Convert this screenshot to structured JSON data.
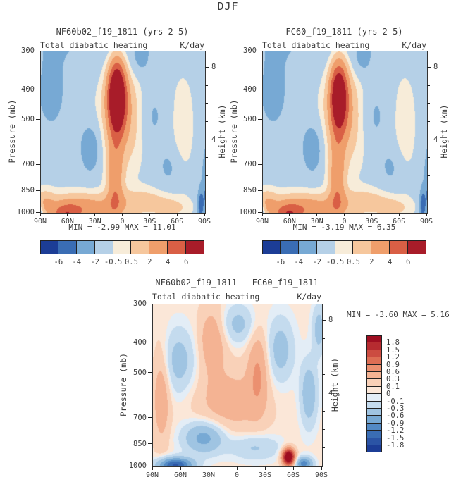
{
  "title": "DJF",
  "chart_data": [
    {
      "type": "contour",
      "panel": "top-left",
      "title": "NF60b02_f19_1811 (yrs 2-5)",
      "field_label": "Total diabatic heating",
      "units_label": "K/day",
      "stats": "MIN =  -2.99   MAX =  11.01",
      "min": -2.99,
      "max": 11.01,
      "xlabel_ticks": [
        "90N",
        "60N",
        "30N",
        "0",
        "30S",
        "60S",
        "90S"
      ],
      "ylabel": "Pressure (mb)",
      "y_ticks": [
        300,
        400,
        500,
        700,
        850,
        1000
      ],
      "y2label": "Height (km)",
      "y2_ticks": [
        8,
        4
      ],
      "levels": [
        -6,
        -4,
        -2,
        -0.5,
        0.5,
        2,
        4,
        6
      ],
      "colorbar_labels": [
        "-6",
        "-4",
        "-2",
        "-0.5",
        "0.5",
        "2",
        "4",
        "6"
      ],
      "palette": [
        "#1c3d96",
        "#3a6db4",
        "#77a9d4",
        "#b5d0e7",
        "#f7ecd9",
        "#f6c79d",
        "#ef9e6b",
        "#d95f45",
        "#a81c29"
      ],
      "base": -0.9,
      "field_blobs": [
        [
          -1.3,
          0.4,
          -0.12,
          0.55,
          0.22
        ],
        [
          -1.4,
          0.06,
          0.28,
          0.13,
          0.3
        ],
        [
          -1.2,
          0.6,
          0.06,
          0.06,
          0.1
        ],
        [
          10.8,
          0.46,
          0.27,
          0.055,
          0.22
        ],
        [
          3.0,
          0.5,
          0.4,
          0.13,
          0.3
        ],
        [
          4.0,
          0.45,
          0.8,
          0.05,
          0.25
        ],
        [
          4.3,
          0.24,
          0.97,
          0.22,
          0.09
        ],
        [
          4.0,
          0.15,
          1.02,
          0.08,
          0.07
        ],
        [
          2.2,
          0.62,
          0.93,
          0.18,
          0.08
        ],
        [
          1.5,
          0.8,
          0.97,
          0.1,
          0.06
        ],
        [
          2.0,
          0.02,
          0.93,
          0.06,
          0.08
        ],
        [
          -2.4,
          0.3,
          0.6,
          0.065,
          0.16
        ],
        [
          -1.6,
          0.67,
          0.4,
          0.09,
          0.22
        ],
        [
          -1.3,
          0.78,
          0.72,
          0.08,
          0.14
        ],
        [
          1.3,
          0.86,
          0.45,
          0.06,
          0.3
        ],
        [
          -6.0,
          1.03,
          0.85,
          0.04,
          0.25
        ],
        [
          -4.0,
          0.97,
          0.95,
          0.018,
          0.1
        ],
        [
          -2.5,
          -0.01,
          1.0,
          0.025,
          0.06
        ]
      ]
    },
    {
      "type": "contour",
      "panel": "top-right",
      "title": "FC60_f19_1811 (yrs 2-5)",
      "field_label": "Total diabatic heating",
      "units_label": "K/day",
      "stats": "MIN =  -3.19   MAX =   6.35",
      "min": -3.19,
      "max": 6.35,
      "xlabel_ticks": [
        "90N",
        "60N",
        "30N",
        "0",
        "30S",
        "60S",
        "90S"
      ],
      "ylabel": "Pressure (mb)",
      "y_ticks": [
        300,
        400,
        500,
        700,
        850,
        1000
      ],
      "y2label": "Height (km)",
      "y2_ticks": [
        8,
        4
      ],
      "levels": [
        -6,
        -4,
        -2,
        -0.5,
        0.5,
        2,
        4,
        6
      ],
      "colorbar_labels": [
        "-6",
        "-4",
        "-2",
        "-0.5",
        "0.5",
        "2",
        "4",
        "6"
      ],
      "palette": [
        "#1c3d96",
        "#3a6db4",
        "#77a9d4",
        "#b5d0e7",
        "#f7ecd9",
        "#f6c79d",
        "#ef9e6b",
        "#d95f45",
        "#a81c29"
      ],
      "base": -0.9,
      "field_blobs": [
        [
          -1.3,
          0.4,
          -0.12,
          0.55,
          0.22
        ],
        [
          -1.4,
          0.06,
          0.28,
          0.13,
          0.3
        ],
        [
          -1.2,
          0.6,
          0.06,
          0.06,
          0.1
        ],
        [
          9.0,
          0.46,
          0.27,
          0.055,
          0.22
        ],
        [
          2.8,
          0.5,
          0.4,
          0.13,
          0.3
        ],
        [
          4.0,
          0.45,
          0.8,
          0.05,
          0.25
        ],
        [
          4.3,
          0.24,
          0.97,
          0.22,
          0.09
        ],
        [
          4.2,
          0.15,
          1.02,
          0.08,
          0.07
        ],
        [
          2.2,
          0.62,
          0.93,
          0.18,
          0.08
        ],
        [
          1.5,
          0.8,
          0.97,
          0.1,
          0.06
        ],
        [
          2.0,
          0.02,
          0.93,
          0.06,
          0.08
        ],
        [
          -2.4,
          0.3,
          0.6,
          0.065,
          0.16
        ],
        [
          -1.6,
          0.67,
          0.4,
          0.09,
          0.22
        ],
        [
          -1.3,
          0.78,
          0.72,
          0.08,
          0.14
        ],
        [
          1.3,
          0.86,
          0.45,
          0.06,
          0.3
        ],
        [
          -6.0,
          1.03,
          0.85,
          0.04,
          0.25
        ],
        [
          -4.0,
          0.97,
          0.95,
          0.018,
          0.1
        ],
        [
          -2.5,
          -0.01,
          1.0,
          0.025,
          0.06
        ]
      ]
    },
    {
      "type": "contour",
      "panel": "bottom-difference",
      "title": "NF60b02_f19_1811 - FC60_f19_1811",
      "field_label": "Total diabatic heating",
      "units_label": "K/day",
      "stats": "MIN =  -3.60  MAX =   5.16",
      "min": -3.6,
      "max": 5.16,
      "xlabel_ticks": [
        "90N",
        "60N",
        "30N",
        "0",
        "30S",
        "60S",
        "90S"
      ],
      "ylabel": "Pressure (mb)",
      "y_ticks": [
        300,
        400,
        500,
        700,
        850,
        1000
      ],
      "y2label": "Height (km)",
      "y2_ticks": [
        8,
        4
      ],
      "levels": [
        -1.8,
        -1.5,
        -1.2,
        -0.9,
        -0.6,
        -0.3,
        -0.1,
        0,
        0.1,
        0.3,
        0.6,
        0.9,
        1.2,
        1.5,
        1.8
      ],
      "colorbar_labels": [
        "1.8",
        "1.5",
        "1.2",
        "0.9",
        "0.6",
        "0.3",
        "0.1",
        "0",
        "-0.1",
        "-0.3",
        "-0.6",
        "-0.9",
        "-1.2",
        "-1.5",
        "-1.8"
      ],
      "palette": [
        "#1c3d96",
        "#2b54a5",
        "#3a6db4",
        "#5289c4",
        "#77a9d4",
        "#9fc4e2",
        "#c4dbee",
        "#e3edf6",
        "#fbe7d8",
        "#f9d1b8",
        "#f4b393",
        "#eb9070",
        "#dd6e54",
        "#cc4c41",
        "#b62b30",
        "#9e0e21"
      ],
      "base": 0.05,
      "field_blobs": [
        [
          -0.5,
          0.15,
          0.35,
          0.1,
          0.2
        ],
        [
          0.5,
          0.35,
          0.22,
          0.08,
          0.2
        ],
        [
          -0.45,
          0.5,
          0.12,
          0.1,
          0.12
        ],
        [
          0.55,
          0.62,
          0.4,
          0.06,
          0.25
        ],
        [
          -0.5,
          0.75,
          0.28,
          0.08,
          0.2
        ],
        [
          -0.6,
          0.92,
          0.55,
          0.05,
          0.2
        ],
        [
          0.4,
          0.45,
          0.6,
          0.2,
          0.2
        ],
        [
          -0.8,
          0.3,
          0.82,
          0.12,
          0.1
        ],
        [
          -0.4,
          0.6,
          0.88,
          0.15,
          0.08
        ],
        [
          -1.6,
          0.13,
          0.99,
          0.1,
          0.045
        ],
        [
          2.6,
          0.8,
          0.94,
          0.035,
          0.05
        ],
        [
          -1.1,
          0.89,
          0.98,
          0.05,
          0.04
        ],
        [
          0.5,
          0.05,
          0.55,
          0.05,
          0.3
        ],
        [
          -0.5,
          0.98,
          0.15,
          0.04,
          0.15
        ]
      ]
    }
  ]
}
